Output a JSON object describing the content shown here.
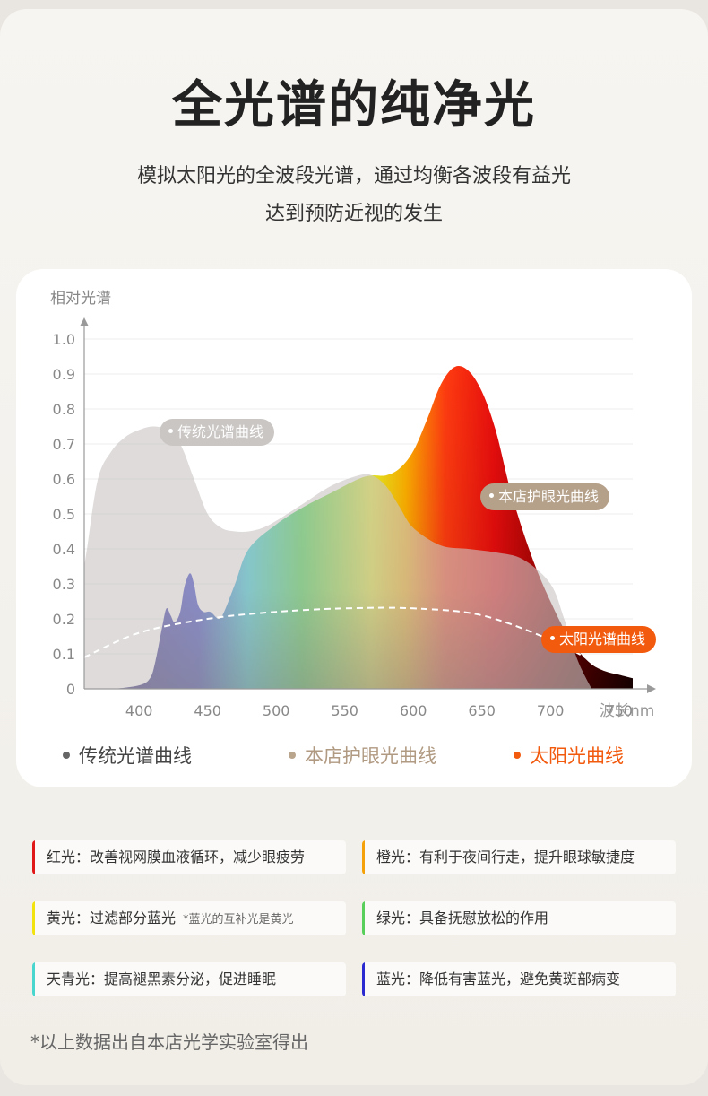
{
  "title": "全光谱的纯净光",
  "subtitle_line1": "模拟太阳光的全波段光谱，通过均衡各波段有益光",
  "subtitle_line2": "达到预防近视的发生",
  "chart_data": {
    "type": "area",
    "ylabel": "相对光谱",
    "xlabel": "波长nm",
    "xlim": [
      360,
      760
    ],
    "ylim": [
      0,
      1.0
    ],
    "xticks": [
      400,
      450,
      500,
      550,
      600,
      650,
      700,
      750
    ],
    "yticks": [
      "0",
      "0.1",
      "0.2",
      "0.3",
      "0.4",
      "0.5",
      "0.6",
      "0.7",
      "0.8",
      "0.9",
      "1.0"
    ],
    "grid": true,
    "series": [
      {
        "name": "传统光谱曲线",
        "color": "#c9c5c3",
        "x": [
          360,
          362,
          370,
          380,
          390,
          400,
          410,
          420,
          430,
          440,
          450,
          460,
          470,
          480,
          490,
          500,
          520,
          540,
          560,
          570,
          580,
          590,
          600,
          620,
          640,
          660,
          680,
          700,
          710,
          720,
          730
        ],
        "y": [
          0.35,
          0.4,
          0.6,
          0.68,
          0.72,
          0.74,
          0.75,
          0.74,
          0.7,
          0.6,
          0.5,
          0.46,
          0.45,
          0.45,
          0.46,
          0.48,
          0.53,
          0.58,
          0.61,
          0.61,
          0.58,
          0.52,
          0.46,
          0.41,
          0.4,
          0.39,
          0.37,
          0.3,
          0.2,
          0.08,
          0.0
        ]
      },
      {
        "name": "本店护眼光曲线",
        "color": "#b19a82",
        "x": [
          360,
          380,
          400,
          408,
          412,
          417,
          420,
          423,
          426,
          430,
          433,
          437,
          440,
          443,
          447,
          452,
          458,
          462,
          470,
          480,
          500,
          520,
          540,
          560,
          570,
          580,
          590,
          600,
          610,
          620,
          630,
          640,
          650,
          660,
          670,
          680,
          690,
          700,
          710,
          720,
          730,
          740,
          750,
          760
        ],
        "y": [
          0.0,
          0.0,
          0.01,
          0.03,
          0.08,
          0.18,
          0.23,
          0.21,
          0.19,
          0.22,
          0.29,
          0.33,
          0.3,
          0.24,
          0.22,
          0.22,
          0.2,
          0.22,
          0.3,
          0.4,
          0.47,
          0.52,
          0.56,
          0.6,
          0.61,
          0.61,
          0.63,
          0.68,
          0.77,
          0.87,
          0.92,
          0.91,
          0.85,
          0.74,
          0.58,
          0.45,
          0.34,
          0.25,
          0.17,
          0.11,
          0.07,
          0.05,
          0.04,
          0.03
        ]
      },
      {
        "name": "太阳光谱曲线",
        "color": "#f25a0e",
        "x": [
          360,
          400,
          450,
          500,
          550,
          600,
          650,
          700,
          730
        ],
        "y": [
          0.09,
          0.16,
          0.2,
          0.22,
          0.23,
          0.23,
          0.21,
          0.14,
          0.08
        ]
      }
    ]
  },
  "tags": {
    "traditional": "传统光谱曲线",
    "eye_care": "本店护眼光曲线",
    "sun": "太阳光谱曲线"
  },
  "legend": {
    "traditional": "传统光谱曲线",
    "eye_care": "本店护眼光曲线",
    "sun": "太阳光曲线"
  },
  "colors": {
    "traditional_dot": "#666666",
    "eye_care_dot": "#b9a48c",
    "sun_dot": "#f25a0e"
  },
  "info_items": [
    {
      "text": "红光：改善视网膜血液循环，减少眼疲劳",
      "note": "",
      "color": "#e01818"
    },
    {
      "text": "橙光：有利于夜间行走，提升眼球敏捷度",
      "note": "",
      "color": "#f5a20a"
    },
    {
      "text": "黄光：过滤部分蓝光",
      "note": "*蓝光的互补光是黄光",
      "color": "#f2e20e"
    },
    {
      "text": "绿光：具备抚慰放松的作用",
      "note": "",
      "color": "#58cf5a"
    },
    {
      "text": "天青光：提高褪黑素分泌，促进睡眠",
      "note": "",
      "color": "#48d6cf"
    },
    {
      "text": "蓝光：降低有害蓝光，避免黄斑部病变",
      "note": "",
      "color": "#2a2ad0"
    }
  ],
  "footnote": "*以上数据出自本店光学实验室得出"
}
